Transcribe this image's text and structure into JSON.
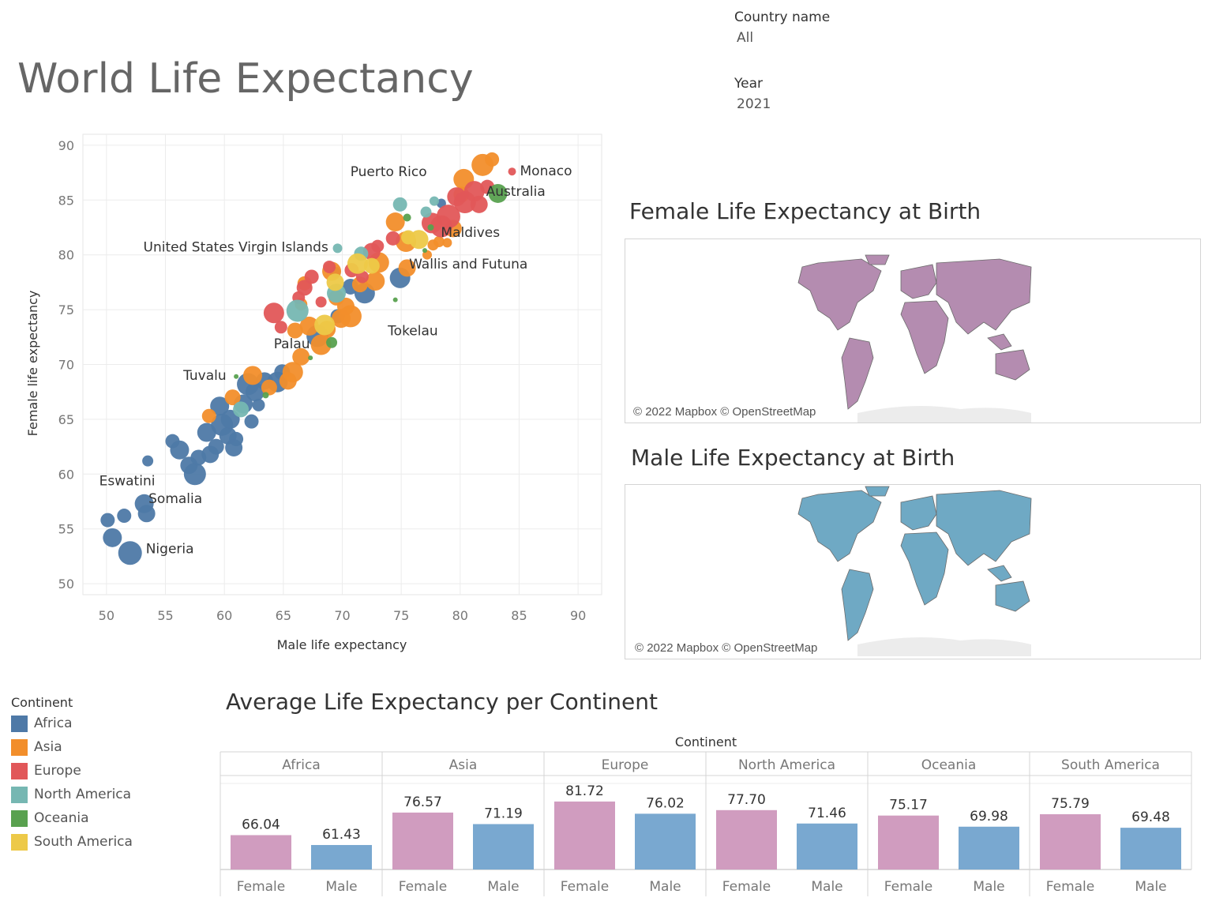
{
  "dashboard": {
    "title": "World Life Expectancy"
  },
  "filters": [
    {
      "label": "Country name",
      "value": "All"
    },
    {
      "label": "Year",
      "value": "2021"
    }
  ],
  "colors": {
    "Africa": "#4e79a7",
    "Asia": "#f28e2b",
    "Europe": "#e15759",
    "North America": "#76b7b2",
    "Oceania": "#59a14f",
    "South America": "#edc948",
    "female_bar": "#d09cbf",
    "male_bar": "#79a8d0"
  },
  "maps": {
    "female": {
      "title": "Female Life Expectancy at Birth",
      "copyright": "© 2022 Mapbox © OpenStreetMap",
      "fill": "#b48cb0"
    },
    "male": {
      "title": "Male Life Expectancy at Birth",
      "copyright": "© 2022 Mapbox © OpenStreetMap",
      "fill": "#6fa9c4"
    }
  },
  "legend": {
    "title": "Continent",
    "items": [
      "Africa",
      "Asia",
      "Europe",
      "North America",
      "Oceania",
      "South America"
    ]
  },
  "bar_title": "Average Life Expectancy per Continent",
  "chart_data": [
    {
      "type": "scatter",
      "xlabel": "Male life expectancy",
      "ylabel": "Female life expectancy",
      "xlim": [
        48,
        92
      ],
      "ylim": [
        49,
        91
      ],
      "xticks": [
        50,
        55,
        60,
        65,
        70,
        75,
        80,
        85,
        90
      ],
      "yticks": [
        50,
        55,
        60,
        65,
        70,
        75,
        80,
        85,
        90
      ],
      "grid": true,
      "labels": [
        {
          "text": "Monaco",
          "x": 84.4,
          "y": 87.6
        },
        {
          "text": "Australia",
          "x": 83.2,
          "y": 85.6
        },
        {
          "text": "Puerto Rico",
          "x": 74.5,
          "y": 86.1
        },
        {
          "text": "United States Virgin Islands",
          "x": 69.6,
          "y": 80.6
        },
        {
          "text": "Maldives",
          "x": 78.5,
          "y": 80.9
        },
        {
          "text": "Wallis and Futuna",
          "x": 76.0,
          "y": 78.6
        },
        {
          "text": "Tokelau",
          "x": 74.6,
          "y": 75.7
        },
        {
          "text": "Palau",
          "x": 67.2,
          "y": 70.6
        },
        {
          "text": "Tuvalu",
          "x": 61.0,
          "y": 68.9
        },
        {
          "text": "Eswatini",
          "x": 53.2,
          "y": 59.7
        },
        {
          "text": "Somalia",
          "x": 53.1,
          "y": 57.2
        },
        {
          "text": "Nigeria",
          "x": 52.0,
          "y": 52.8
        }
      ],
      "points": [
        {
          "continent": "Africa",
          "x": 50.1,
          "y": 55.8,
          "size": 9
        },
        {
          "continent": "Africa",
          "x": 50.5,
          "y": 54.2,
          "size": 12
        },
        {
          "continent": "Africa",
          "x": 51.5,
          "y": 56.2,
          "size": 9
        },
        {
          "continent": "Africa",
          "x": 52.0,
          "y": 52.8,
          "size": 15
        },
        {
          "continent": "Africa",
          "x": 53.2,
          "y": 57.3,
          "size": 12
        },
        {
          "continent": "Africa",
          "x": 53.4,
          "y": 56.4,
          "size": 11
        },
        {
          "continent": "Africa",
          "x": 53.5,
          "y": 61.2,
          "size": 7
        },
        {
          "continent": "Africa",
          "x": 55.6,
          "y": 63.0,
          "size": 9
        },
        {
          "continent": "Africa",
          "x": 56.2,
          "y": 62.2,
          "size": 12
        },
        {
          "continent": "Africa",
          "x": 57.0,
          "y": 60.8,
          "size": 11
        },
        {
          "continent": "Africa",
          "x": 57.5,
          "y": 60.0,
          "size": 14
        },
        {
          "continent": "Africa",
          "x": 57.8,
          "y": 61.5,
          "size": 10
        },
        {
          "continent": "Africa",
          "x": 58.5,
          "y": 63.8,
          "size": 12
        },
        {
          "continent": "Africa",
          "x": 58.8,
          "y": 61.8,
          "size": 11
        },
        {
          "continent": "Africa",
          "x": 59.3,
          "y": 62.5,
          "size": 10
        },
        {
          "continent": "Africa",
          "x": 59.6,
          "y": 66.2,
          "size": 12
        },
        {
          "continent": "Africa",
          "x": 59.8,
          "y": 64.5,
          "size": 14
        },
        {
          "continent": "Africa",
          "x": 60.3,
          "y": 63.5,
          "size": 11
        },
        {
          "continent": "Africa",
          "x": 60.5,
          "y": 65.0,
          "size": 12
        },
        {
          "continent": "Africa",
          "x": 60.8,
          "y": 62.4,
          "size": 11
        },
        {
          "continent": "Africa",
          "x": 61.0,
          "y": 63.2,
          "size": 9
        },
        {
          "continent": "Africa",
          "x": 61.6,
          "y": 66.4,
          "size": 12
        },
        {
          "continent": "Africa",
          "x": 62.0,
          "y": 68.2,
          "size": 14
        },
        {
          "continent": "Africa",
          "x": 62.3,
          "y": 64.8,
          "size": 9
        },
        {
          "continent": "Africa",
          "x": 62.6,
          "y": 67.5,
          "size": 12
        },
        {
          "continent": "Africa",
          "x": 62.9,
          "y": 66.3,
          "size": 8
        },
        {
          "continent": "Africa",
          "x": 63.4,
          "y": 68.5,
          "size": 11
        },
        {
          "continent": "Africa",
          "x": 64.5,
          "y": 68.4,
          "size": 13
        },
        {
          "continent": "Africa",
          "x": 64.9,
          "y": 69.3,
          "size": 10
        },
        {
          "continent": "Africa",
          "x": 67.9,
          "y": 72.6,
          "size": 14
        },
        {
          "continent": "Africa",
          "x": 69.6,
          "y": 74.4,
          "size": 9
        },
        {
          "continent": "Africa",
          "x": 70.7,
          "y": 77.1,
          "size": 10
        },
        {
          "continent": "Africa",
          "x": 71.9,
          "y": 76.5,
          "size": 13
        },
        {
          "continent": "Africa",
          "x": 74.9,
          "y": 77.9,
          "size": 13
        },
        {
          "continent": "Africa",
          "x": 69.4,
          "y": 78.4,
          "size": 7
        },
        {
          "continent": "Africa",
          "x": 78.4,
          "y": 84.7,
          "size": 6
        },
        {
          "continent": "Asia",
          "x": 58.7,
          "y": 65.3,
          "size": 9
        },
        {
          "continent": "Asia",
          "x": 60.7,
          "y": 67.0,
          "size": 10
        },
        {
          "continent": "Asia",
          "x": 62.4,
          "y": 69.0,
          "size": 12
        },
        {
          "continent": "Asia",
          "x": 63.8,
          "y": 67.9,
          "size": 10
        },
        {
          "continent": "Asia",
          "x": 65.4,
          "y": 68.5,
          "size": 11
        },
        {
          "continent": "Asia",
          "x": 65.8,
          "y": 69.3,
          "size": 13
        },
        {
          "continent": "Asia",
          "x": 66.5,
          "y": 70.7,
          "size": 11
        },
        {
          "continent": "Asia",
          "x": 66.0,
          "y": 73.1,
          "size": 10
        },
        {
          "continent": "Asia",
          "x": 67.2,
          "y": 73.5,
          "size": 12
        },
        {
          "continent": "Asia",
          "x": 68.2,
          "y": 71.8,
          "size": 13
        },
        {
          "continent": "Asia",
          "x": 68.7,
          "y": 73.2,
          "size": 11
        },
        {
          "continent": "Asia",
          "x": 69.5,
          "y": 76.1,
          "size": 10
        },
        {
          "continent": "Asia",
          "x": 69.9,
          "y": 74.2,
          "size": 12
        },
        {
          "continent": "Asia",
          "x": 70.3,
          "y": 75.3,
          "size": 11
        },
        {
          "continent": "Asia",
          "x": 70.7,
          "y": 74.4,
          "size": 14
        },
        {
          "continent": "Asia",
          "x": 71.5,
          "y": 77.3,
          "size": 10
        },
        {
          "continent": "Asia",
          "x": 72.8,
          "y": 77.6,
          "size": 12
        },
        {
          "continent": "Asia",
          "x": 73.1,
          "y": 79.3,
          "size": 13
        },
        {
          "continent": "Asia",
          "x": 69.1,
          "y": 78.5,
          "size": 12
        },
        {
          "continent": "Asia",
          "x": 66.8,
          "y": 77.4,
          "size": 9
        },
        {
          "continent": "Asia",
          "x": 66.5,
          "y": 75.5,
          "size": 8
        },
        {
          "continent": "Asia",
          "x": 74.5,
          "y": 83.0,
          "size": 12
        },
        {
          "continent": "Asia",
          "x": 75.4,
          "y": 81.2,
          "size": 13
        },
        {
          "continent": "Asia",
          "x": 75.5,
          "y": 78.8,
          "size": 11
        },
        {
          "continent": "Asia",
          "x": 77.2,
          "y": 80.0,
          "size": 6
        },
        {
          "continent": "Asia",
          "x": 77.7,
          "y": 80.9,
          "size": 7
        },
        {
          "continent": "Asia",
          "x": 78.2,
          "y": 81.2,
          "size": 7
        },
        {
          "continent": "Asia",
          "x": 78.9,
          "y": 81.1,
          "size": 6
        },
        {
          "continent": "Asia",
          "x": 79.4,
          "y": 82.4,
          "size": 11
        },
        {
          "continent": "Asia",
          "x": 80.1,
          "y": 85.5,
          "size": 10
        },
        {
          "continent": "Asia",
          "x": 80.3,
          "y": 86.9,
          "size": 13
        },
        {
          "continent": "Asia",
          "x": 81.9,
          "y": 88.2,
          "size": 14
        },
        {
          "continent": "Asia",
          "x": 82.7,
          "y": 88.7,
          "size": 9
        },
        {
          "continent": "Europe",
          "x": 64.2,
          "y": 74.7,
          "size": 13
        },
        {
          "continent": "Europe",
          "x": 64.8,
          "y": 73.4,
          "size": 8
        },
        {
          "continent": "Europe",
          "x": 66.3,
          "y": 76.1,
          "size": 8
        },
        {
          "continent": "Europe",
          "x": 66.8,
          "y": 77.0,
          "size": 10
        },
        {
          "continent": "Europe",
          "x": 67.4,
          "y": 78.0,
          "size": 9
        },
        {
          "continent": "Europe",
          "x": 68.2,
          "y": 75.7,
          "size": 7
        },
        {
          "continent": "Europe",
          "x": 68.9,
          "y": 78.9,
          "size": 8
        },
        {
          "continent": "Europe",
          "x": 70.8,
          "y": 78.6,
          "size": 9
        },
        {
          "continent": "Europe",
          "x": 71.7,
          "y": 78.0,
          "size": 8
        },
        {
          "continent": "Europe",
          "x": 72.5,
          "y": 80.3,
          "size": 11
        },
        {
          "continent": "Europe",
          "x": 73.0,
          "y": 80.8,
          "size": 8
        },
        {
          "continent": "Europe",
          "x": 74.3,
          "y": 81.5,
          "size": 9
        },
        {
          "continent": "Europe",
          "x": 77.6,
          "y": 82.9,
          "size": 13
        },
        {
          "continent": "Europe",
          "x": 78.4,
          "y": 82.6,
          "size": 14
        },
        {
          "continent": "Europe",
          "x": 79.0,
          "y": 83.5,
          "size": 15
        },
        {
          "continent": "Europe",
          "x": 79.7,
          "y": 85.3,
          "size": 12
        },
        {
          "continent": "Europe",
          "x": 80.4,
          "y": 84.8,
          "size": 14
        },
        {
          "continent": "Europe",
          "x": 81.2,
          "y": 85.8,
          "size": 13
        },
        {
          "continent": "Europe",
          "x": 81.6,
          "y": 84.6,
          "size": 11
        },
        {
          "continent": "Europe",
          "x": 82.3,
          "y": 86.2,
          "size": 9
        },
        {
          "continent": "Europe",
          "x": 84.4,
          "y": 87.6,
          "size": 5
        },
        {
          "continent": "North America",
          "x": 66.2,
          "y": 74.9,
          "size": 14
        },
        {
          "continent": "North America",
          "x": 69.5,
          "y": 76.5,
          "size": 12
        },
        {
          "continent": "North America",
          "x": 69.6,
          "y": 80.6,
          "size": 6
        },
        {
          "continent": "North America",
          "x": 61.4,
          "y": 65.9,
          "size": 10
        },
        {
          "continent": "North America",
          "x": 71.6,
          "y": 80.1,
          "size": 9
        },
        {
          "continent": "North America",
          "x": 74.9,
          "y": 84.6,
          "size": 9
        },
        {
          "continent": "North America",
          "x": 77.1,
          "y": 83.9,
          "size": 7
        },
        {
          "continent": "North America",
          "x": 77.8,
          "y": 84.9,
          "size": 6
        },
        {
          "continent": "Oceania",
          "x": 67.3,
          "y": 70.6,
          "size": 3
        },
        {
          "continent": "Oceania",
          "x": 61.0,
          "y": 68.9,
          "size": 3
        },
        {
          "continent": "Oceania",
          "x": 63.5,
          "y": 67.2,
          "size": 4
        },
        {
          "continent": "Oceania",
          "x": 69.1,
          "y": 72.0,
          "size": 7
        },
        {
          "continent": "Oceania",
          "x": 74.5,
          "y": 75.9,
          "size": 3
        },
        {
          "continent": "Oceania",
          "x": 75.5,
          "y": 83.4,
          "size": 5
        },
        {
          "continent": "Oceania",
          "x": 77.0,
          "y": 80.4,
          "size": 3
        },
        {
          "continent": "Oceania",
          "x": 77.5,
          "y": 82.5,
          "size": 4
        },
        {
          "continent": "Oceania",
          "x": 83.2,
          "y": 85.6,
          "size": 12
        },
        {
          "continent": "South America",
          "x": 68.5,
          "y": 73.6,
          "size": 13
        },
        {
          "continent": "South America",
          "x": 69.4,
          "y": 77.5,
          "size": 11
        },
        {
          "continent": "South America",
          "x": 71.3,
          "y": 79.2,
          "size": 13
        },
        {
          "continent": "South America",
          "x": 72.5,
          "y": 79.0,
          "size": 10
        },
        {
          "continent": "South America",
          "x": 75.6,
          "y": 81.6,
          "size": 9
        },
        {
          "continent": "South America",
          "x": 76.5,
          "y": 81.4,
          "size": 12
        }
      ]
    },
    {
      "type": "bar",
      "title": "Average Life Expectancy per Continent",
      "column_header": "Continent",
      "categories": [
        "Africa",
        "Asia",
        "Europe",
        "North America",
        "Oceania",
        "South America"
      ],
      "subcategories": [
        "Female",
        "Male"
      ],
      "series": [
        {
          "name": "Female",
          "values": [
            66.04,
            76.57,
            81.72,
            77.7,
            75.17,
            75.79
          ]
        },
        {
          "name": "Male",
          "values": [
            61.43,
            71.19,
            76.02,
            71.46,
            69.98,
            69.48
          ]
        }
      ],
      "value_labels": [
        [
          "66.04",
          "61.43"
        ],
        [
          "76.57",
          "71.19"
        ],
        [
          "81.72",
          "76.02"
        ],
        [
          "77.70",
          "71.46"
        ],
        [
          "75.17",
          "69.98"
        ],
        [
          "75.79",
          "69.48"
        ]
      ],
      "ylim": [
        0,
        100
      ]
    }
  ]
}
